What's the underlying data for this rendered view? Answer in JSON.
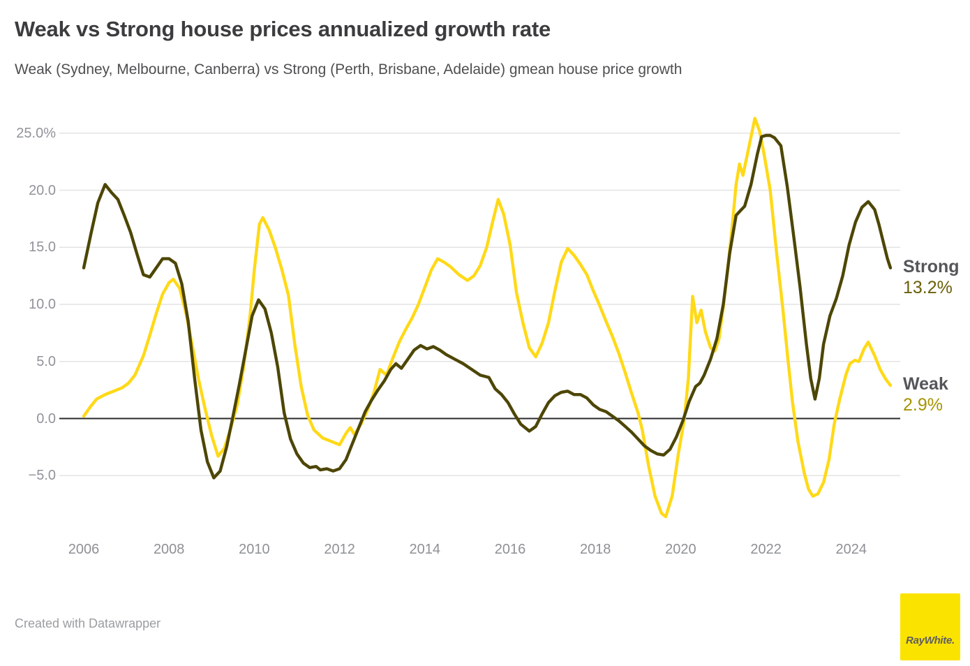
{
  "header": {
    "title": "Weak vs Strong house prices annualized growth rate",
    "subtitle": "Weak (Sydney, Melbourne, Canberra) vs Strong (Perth, Brisbane, Adelaide) gmean house price growth"
  },
  "footer": {
    "credit": "Created with Datawrapper"
  },
  "logo": {
    "text": "RayWhite.",
    "bg": "#fbe300",
    "fg": "#5d5e60"
  },
  "colors": {
    "title": "#3c3c3e",
    "subtitle": "#4f4f51",
    "grid": "#e3e3e3",
    "zero_line": "#2a2a2e",
    "tick_label": "#8e9095",
    "series_name": "#55565a",
    "strong_line": "#4d4605",
    "weak_line": "#ffd917",
    "strong_value_text": "#6a5f08",
    "weak_value_text": "#a59404"
  },
  "chart_data": {
    "type": "line",
    "title": "Weak vs Strong house prices annualized growth rate",
    "subtitle": "Weak (Sydney, Melbourne, Canberra) vs Strong (Perth, Brisbane, Adelaide) gmean house price growth",
    "grid": true,
    "legend_position": "right-end-labels",
    "x_range": [
      2006,
      2025.2
    ],
    "ylim": [
      -10,
      27
    ],
    "x_ticks": [
      2006,
      2008,
      2010,
      2012,
      2014,
      2016,
      2018,
      2020,
      2022,
      2024
    ],
    "y_ticks": [
      {
        "label": "25.0%",
        "value": 25
      },
      {
        "label": "20.0",
        "value": 20
      },
      {
        "label": "15.0",
        "value": 15
      },
      {
        "label": "10.0",
        "value": 10
      },
      {
        "label": "5.0",
        "value": 5
      },
      {
        "label": "0.0",
        "value": 0
      },
      {
        "label": "−5.0",
        "value": -5
      }
    ],
    "zero_baseline": true,
    "series": [
      {
        "name": "Weak",
        "end_value": 2.9,
        "end_value_label": "2.9%",
        "color_key": "weak_line",
        "value_text_color_key": "weak_value_text",
        "points": [
          [
            2006.0,
            0.2
          ],
          [
            2006.15,
            1.0
          ],
          [
            2006.3,
            1.7
          ],
          [
            2006.5,
            2.1
          ],
          [
            2006.7,
            2.4
          ],
          [
            2006.9,
            2.7
          ],
          [
            2007.05,
            3.1
          ],
          [
            2007.2,
            3.8
          ],
          [
            2007.4,
            5.5
          ],
          [
            2007.55,
            7.3
          ],
          [
            2007.7,
            9.2
          ],
          [
            2007.85,
            10.9
          ],
          [
            2008.0,
            11.9
          ],
          [
            2008.1,
            12.2
          ],
          [
            2008.25,
            11.4
          ],
          [
            2008.4,
            9.2
          ],
          [
            2008.55,
            6.3
          ],
          [
            2008.7,
            3.3
          ],
          [
            2008.85,
            0.8
          ],
          [
            2009.0,
            -1.5
          ],
          [
            2009.15,
            -3.3
          ],
          [
            2009.3,
            -2.6
          ],
          [
            2009.45,
            -0.8
          ],
          [
            2009.6,
            1.2
          ],
          [
            2009.75,
            4.5
          ],
          [
            2009.9,
            9.0
          ],
          [
            2010.0,
            13.0
          ],
          [
            2010.12,
            17.0
          ],
          [
            2010.2,
            17.6
          ],
          [
            2010.35,
            16.5
          ],
          [
            2010.5,
            14.9
          ],
          [
            2010.65,
            13.0
          ],
          [
            2010.8,
            10.8
          ],
          [
            2010.95,
            6.5
          ],
          [
            2011.1,
            2.8
          ],
          [
            2011.25,
            0.3
          ],
          [
            2011.4,
            -1.0
          ],
          [
            2011.6,
            -1.7
          ],
          [
            2011.8,
            -2.0
          ],
          [
            2012.0,
            -2.3
          ],
          [
            2012.15,
            -1.3
          ],
          [
            2012.25,
            -0.8
          ],
          [
            2012.35,
            -1.4
          ],
          [
            2012.5,
            -0.5
          ],
          [
            2012.65,
            0.7
          ],
          [
            2012.8,
            2.2
          ],
          [
            2012.95,
            4.3
          ],
          [
            2013.1,
            3.8
          ],
          [
            2013.25,
            5.3
          ],
          [
            2013.4,
            6.7
          ],
          [
            2013.55,
            7.8
          ],
          [
            2013.7,
            8.8
          ],
          [
            2013.85,
            10.0
          ],
          [
            2014.0,
            11.5
          ],
          [
            2014.15,
            13.0
          ],
          [
            2014.3,
            14.0
          ],
          [
            2014.45,
            13.7
          ],
          [
            2014.6,
            13.3
          ],
          [
            2014.8,
            12.6
          ],
          [
            2015.0,
            12.1
          ],
          [
            2015.15,
            12.5
          ],
          [
            2015.3,
            13.4
          ],
          [
            2015.45,
            15.0
          ],
          [
            2015.6,
            17.4
          ],
          [
            2015.72,
            19.2
          ],
          [
            2015.85,
            17.9
          ],
          [
            2016.0,
            15.2
          ],
          [
            2016.15,
            11.0
          ],
          [
            2016.3,
            8.4
          ],
          [
            2016.45,
            6.2
          ],
          [
            2016.6,
            5.4
          ],
          [
            2016.75,
            6.6
          ],
          [
            2016.9,
            8.4
          ],
          [
            2017.05,
            11.2
          ],
          [
            2017.2,
            13.7
          ],
          [
            2017.35,
            14.9
          ],
          [
            2017.5,
            14.3
          ],
          [
            2017.65,
            13.5
          ],
          [
            2017.8,
            12.6
          ],
          [
            2017.95,
            11.2
          ],
          [
            2018.1,
            9.9
          ],
          [
            2018.25,
            8.5
          ],
          [
            2018.4,
            7.2
          ],
          [
            2018.55,
            5.7
          ],
          [
            2018.7,
            4.0
          ],
          [
            2018.85,
            2.2
          ],
          [
            2019.0,
            0.5
          ],
          [
            2019.1,
            -1.0
          ],
          [
            2019.25,
            -4.2
          ],
          [
            2019.4,
            -6.8
          ],
          [
            2019.55,
            -8.3
          ],
          [
            2019.65,
            -8.6
          ],
          [
            2019.8,
            -6.8
          ],
          [
            2019.95,
            -3.0
          ],
          [
            2020.08,
            -0.2
          ],
          [
            2020.18,
            3.5
          ],
          [
            2020.28,
            10.7
          ],
          [
            2020.38,
            8.4
          ],
          [
            2020.48,
            9.5
          ],
          [
            2020.58,
            7.6
          ],
          [
            2020.7,
            6.2
          ],
          [
            2020.8,
            5.9
          ],
          [
            2020.9,
            7.0
          ],
          [
            2021.0,
            9.8
          ],
          [
            2021.1,
            13.0
          ],
          [
            2021.2,
            16.5
          ],
          [
            2021.3,
            20.5
          ],
          [
            2021.38,
            22.3
          ],
          [
            2021.46,
            21.3
          ],
          [
            2021.6,
            23.8
          ],
          [
            2021.74,
            26.3
          ],
          [
            2021.85,
            25.2
          ],
          [
            2021.95,
            23.3
          ],
          [
            2022.1,
            20.0
          ],
          [
            2022.25,
            14.5
          ],
          [
            2022.4,
            9.5
          ],
          [
            2022.52,
            5.0
          ],
          [
            2022.62,
            1.5
          ],
          [
            2022.75,
            -2.0
          ],
          [
            2022.9,
            -4.8
          ],
          [
            2023.0,
            -6.2
          ],
          [
            2023.1,
            -6.8
          ],
          [
            2023.22,
            -6.6
          ],
          [
            2023.35,
            -5.6
          ],
          [
            2023.48,
            -3.6
          ],
          [
            2023.6,
            -0.5
          ],
          [
            2023.73,
            1.7
          ],
          [
            2023.88,
            3.9
          ],
          [
            2023.97,
            4.8
          ],
          [
            2024.08,
            5.1
          ],
          [
            2024.18,
            5.0
          ],
          [
            2024.3,
            6.1
          ],
          [
            2024.4,
            6.7
          ],
          [
            2024.55,
            5.5
          ],
          [
            2024.68,
            4.3
          ],
          [
            2024.8,
            3.5
          ],
          [
            2024.92,
            2.9
          ]
        ]
      },
      {
        "name": "Strong",
        "end_value": 13.2,
        "end_value_label": "13.2%",
        "color_key": "strong_line",
        "value_text_color_key": "strong_value_text",
        "points": [
          [
            2006.0,
            13.2
          ],
          [
            2006.17,
            16.2
          ],
          [
            2006.33,
            18.9
          ],
          [
            2006.5,
            20.5
          ],
          [
            2006.65,
            19.8
          ],
          [
            2006.8,
            19.2
          ],
          [
            2006.95,
            17.8
          ],
          [
            2007.1,
            16.3
          ],
          [
            2007.25,
            14.4
          ],
          [
            2007.4,
            12.6
          ],
          [
            2007.55,
            12.4
          ],
          [
            2007.7,
            13.2
          ],
          [
            2007.85,
            14.0
          ],
          [
            2008.0,
            14.0
          ],
          [
            2008.15,
            13.6
          ],
          [
            2008.3,
            11.8
          ],
          [
            2008.45,
            8.5
          ],
          [
            2008.6,
            3.5
          ],
          [
            2008.75,
            -1.0
          ],
          [
            2008.9,
            -3.8
          ],
          [
            2009.05,
            -5.2
          ],
          [
            2009.2,
            -4.6
          ],
          [
            2009.35,
            -2.5
          ],
          [
            2009.5,
            0.2
          ],
          [
            2009.65,
            3.0
          ],
          [
            2009.8,
            6.0
          ],
          [
            2009.95,
            9.0
          ],
          [
            2010.1,
            10.4
          ],
          [
            2010.25,
            9.6
          ],
          [
            2010.4,
            7.5
          ],
          [
            2010.55,
            4.5
          ],
          [
            2010.7,
            0.5
          ],
          [
            2010.85,
            -1.8
          ],
          [
            2011.0,
            -3.1
          ],
          [
            2011.15,
            -3.9
          ],
          [
            2011.3,
            -4.3
          ],
          [
            2011.45,
            -4.2
          ],
          [
            2011.55,
            -4.5
          ],
          [
            2011.7,
            -4.4
          ],
          [
            2011.85,
            -4.6
          ],
          [
            2012.0,
            -4.4
          ],
          [
            2012.15,
            -3.6
          ],
          [
            2012.3,
            -2.2
          ],
          [
            2012.45,
            -0.8
          ],
          [
            2012.6,
            0.6
          ],
          [
            2012.75,
            1.6
          ],
          [
            2012.9,
            2.5
          ],
          [
            2013.05,
            3.3
          ],
          [
            2013.2,
            4.3
          ],
          [
            2013.32,
            4.8
          ],
          [
            2013.45,
            4.4
          ],
          [
            2013.6,
            5.2
          ],
          [
            2013.75,
            6.0
          ],
          [
            2013.9,
            6.4
          ],
          [
            2014.05,
            6.1
          ],
          [
            2014.2,
            6.3
          ],
          [
            2014.35,
            6.0
          ],
          [
            2014.5,
            5.6
          ],
          [
            2014.7,
            5.2
          ],
          [
            2014.9,
            4.8
          ],
          [
            2015.1,
            4.3
          ],
          [
            2015.3,
            3.8
          ],
          [
            2015.5,
            3.6
          ],
          [
            2015.65,
            2.6
          ],
          [
            2015.8,
            2.1
          ],
          [
            2015.95,
            1.4
          ],
          [
            2016.1,
            0.4
          ],
          [
            2016.25,
            -0.5
          ],
          [
            2016.45,
            -1.1
          ],
          [
            2016.6,
            -0.7
          ],
          [
            2016.75,
            0.4
          ],
          [
            2016.9,
            1.4
          ],
          [
            2017.05,
            2.0
          ],
          [
            2017.2,
            2.3
          ],
          [
            2017.35,
            2.4
          ],
          [
            2017.5,
            2.1
          ],
          [
            2017.65,
            2.1
          ],
          [
            2017.8,
            1.8
          ],
          [
            2017.95,
            1.2
          ],
          [
            2018.1,
            0.8
          ],
          [
            2018.25,
            0.6
          ],
          [
            2018.4,
            0.2
          ],
          [
            2018.55,
            -0.2
          ],
          [
            2018.7,
            -0.7
          ],
          [
            2018.85,
            -1.2
          ],
          [
            2019.0,
            -1.8
          ],
          [
            2019.15,
            -2.4
          ],
          [
            2019.3,
            -2.8
          ],
          [
            2019.45,
            -3.1
          ],
          [
            2019.6,
            -3.2
          ],
          [
            2019.75,
            -2.7
          ],
          [
            2019.9,
            -1.6
          ],
          [
            2020.05,
            -0.2
          ],
          [
            2020.2,
            1.5
          ],
          [
            2020.35,
            2.8
          ],
          [
            2020.45,
            3.1
          ],
          [
            2020.55,
            3.8
          ],
          [
            2020.7,
            5.2
          ],
          [
            2020.85,
            7.0
          ],
          [
            2021.0,
            10.0
          ],
          [
            2021.15,
            14.5
          ],
          [
            2021.3,
            17.8
          ],
          [
            2021.4,
            18.2
          ],
          [
            2021.5,
            18.6
          ],
          [
            2021.65,
            20.5
          ],
          [
            2021.8,
            23.2
          ],
          [
            2021.9,
            24.7
          ],
          [
            2022.0,
            24.8
          ],
          [
            2022.1,
            24.8
          ],
          [
            2022.2,
            24.6
          ],
          [
            2022.35,
            23.9
          ],
          [
            2022.5,
            20.3
          ],
          [
            2022.65,
            16.0
          ],
          [
            2022.8,
            11.5
          ],
          [
            2022.95,
            6.5
          ],
          [
            2023.05,
            3.5
          ],
          [
            2023.15,
            1.7
          ],
          [
            2023.25,
            3.5
          ],
          [
            2023.35,
            6.5
          ],
          [
            2023.5,
            9.0
          ],
          [
            2023.65,
            10.5
          ],
          [
            2023.8,
            12.5
          ],
          [
            2023.95,
            15.2
          ],
          [
            2024.1,
            17.2
          ],
          [
            2024.25,
            18.5
          ],
          [
            2024.4,
            19.0
          ],
          [
            2024.55,
            18.3
          ],
          [
            2024.65,
            17.0
          ],
          [
            2024.75,
            15.5
          ],
          [
            2024.85,
            14.0
          ],
          [
            2024.92,
            13.2
          ]
        ]
      }
    ]
  }
}
